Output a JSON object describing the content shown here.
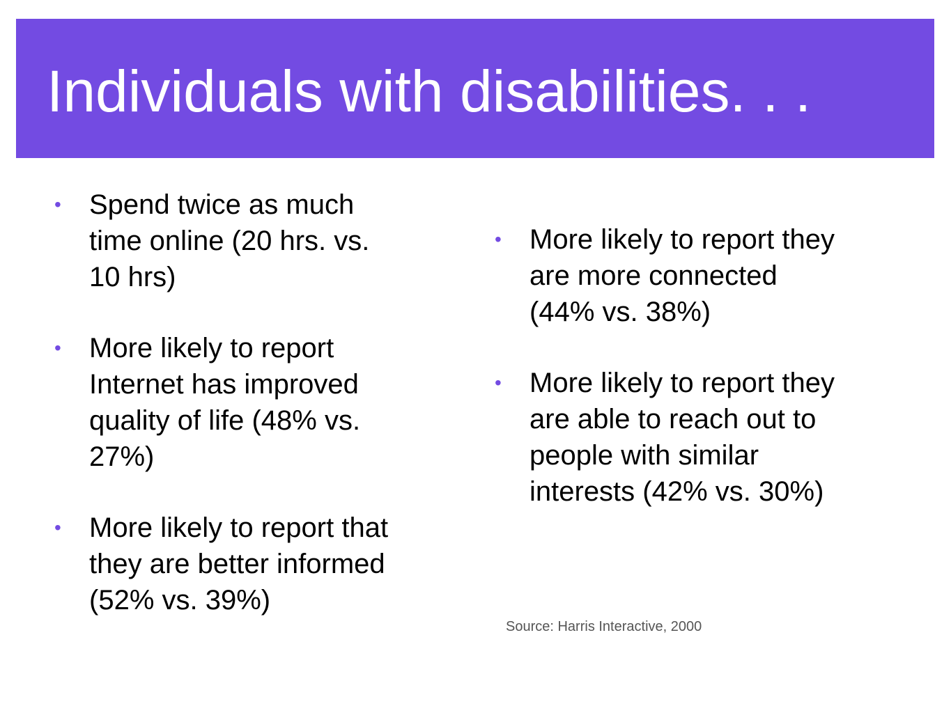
{
  "slide": {
    "title": "Individuals with disabilities. . .",
    "left_bullets": [
      "Spend twice as much time online (20 hrs. vs. 10 hrs)",
      "More likely to report Internet has improved quality of life (48% vs. 27%)",
      "More likely to report that they are better informed (52% vs. 39%)"
    ],
    "right_bullets": [
      "More likely to report they are more connected (44% vs. 38%)",
      "More likely to report they are able to reach out to people with similar interests (42% vs. 30%)"
    ],
    "source": "Source: Harris Interactive, 2000",
    "accent_color": "#734be2"
  }
}
